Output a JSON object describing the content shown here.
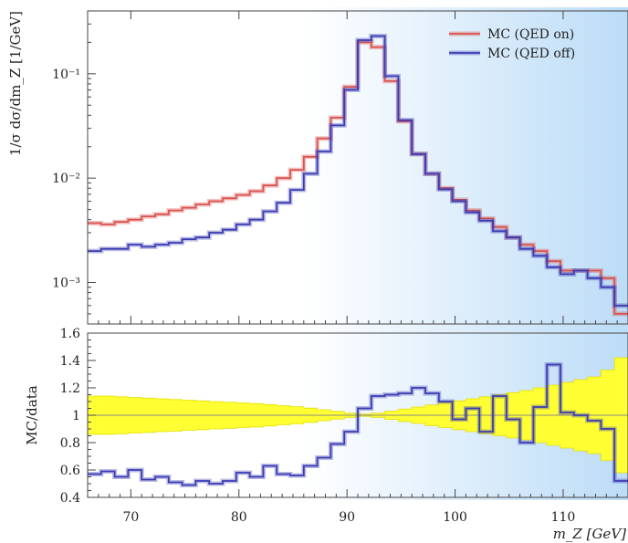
{
  "chart_data": [
    {
      "type": "line",
      "panel": "main",
      "xlabel": "m_Z [GeV]",
      "ylabel": "1/σ dσ/dm_Z [1/GeV]",
      "xlim": [
        66,
        116
      ],
      "ylim": [
        0.0004,
        0.4
      ],
      "yscale": "log",
      "x_ticks": [
        70,
        80,
        90,
        100,
        110
      ],
      "y_ticks": [
        {
          "value": 0.001,
          "label": "10⁻³"
        },
        {
          "value": 0.01,
          "label": "10⁻²"
        },
        {
          "value": 0.1,
          "label": "10⁻¹"
        }
      ],
      "bin_edges": [
        66,
        67.25,
        68.5,
        69.75,
        71,
        72.25,
        73.5,
        74.75,
        76,
        77.25,
        78.5,
        79.75,
        81,
        82.25,
        83.5,
        84.75,
        86,
        87.25,
        88.5,
        89.75,
        91,
        92.25,
        93.5,
        94.75,
        96,
        97.25,
        98.5,
        99.75,
        101,
        102.25,
        103.5,
        104.75,
        106,
        107.25,
        108.5,
        109.75,
        111,
        112.25,
        113.5,
        114.75,
        116
      ],
      "legend": {
        "position": "top-right"
      },
      "series": [
        {
          "name": "MC (QED on)",
          "color": "#d9534f",
          "values": [
            0.0037,
            0.0036,
            0.0038,
            0.004,
            0.0043,
            0.0045,
            0.0049,
            0.0052,
            0.0056,
            0.006,
            0.0064,
            0.0069,
            0.0075,
            0.0085,
            0.01,
            0.012,
            0.016,
            0.024,
            0.038,
            0.075,
            0.2,
            0.18,
            0.085,
            0.035,
            0.017,
            0.011,
            0.008,
            0.0062,
            0.0049,
            0.0041,
            0.0034,
            0.0027,
            0.0023,
            0.002,
            0.0016,
            0.0013,
            0.0013,
            0.0013,
            0.0011,
            0.0005
          ]
        },
        {
          "name": "MC (QED off)",
          "color": "#3b3bb3",
          "values": [
            0.002,
            0.0021,
            0.0021,
            0.0023,
            0.0022,
            0.0023,
            0.0024,
            0.0026,
            0.0027,
            0.003,
            0.0032,
            0.0036,
            0.004,
            0.0048,
            0.0058,
            0.0077,
            0.011,
            0.018,
            0.032,
            0.07,
            0.21,
            0.23,
            0.095,
            0.036,
            0.017,
            0.011,
            0.0078,
            0.006,
            0.0047,
            0.0039,
            0.0031,
            0.0027,
            0.0021,
            0.0018,
            0.0014,
            0.0012,
            0.0013,
            0.0011,
            0.0009,
            0.0006
          ]
        }
      ]
    },
    {
      "type": "line",
      "panel": "ratio",
      "xlabel": "m_Z [GeV]",
      "ylabel": "MC/data",
      "xlim": [
        66,
        116
      ],
      "ylim": [
        0.4,
        1.6
      ],
      "x_ticks": [
        70,
        80,
        90,
        100,
        110
      ],
      "y_ticks": [
        0.4,
        0.6,
        0.8,
        1,
        1.2,
        1.4,
        1.6
      ],
      "bin_edges": [
        66,
        67.25,
        68.5,
        69.75,
        71,
        72.25,
        73.5,
        74.75,
        76,
        77.25,
        78.5,
        79.75,
        81,
        82.25,
        83.5,
        84.75,
        86,
        87.25,
        88.5,
        89.75,
        91,
        92.25,
        93.5,
        94.75,
        96,
        97.25,
        98.5,
        99.75,
        101,
        102.25,
        103.5,
        104.75,
        106,
        107.25,
        108.5,
        109.75,
        111,
        112.25,
        113.5,
        114.75,
        116
      ],
      "reference_line": 1,
      "uncertainty_band": {
        "color": "#ffff33",
        "half_width": [
          0.14,
          0.14,
          0.135,
          0.13,
          0.125,
          0.12,
          0.115,
          0.11,
          0.105,
          0.1,
          0.095,
          0.09,
          0.085,
          0.078,
          0.07,
          0.062,
          0.052,
          0.04,
          0.028,
          0.015,
          0.008,
          0.015,
          0.03,
          0.045,
          0.06,
          0.075,
          0.09,
          0.105,
          0.12,
          0.135,
          0.15,
          0.165,
          0.18,
          0.2,
          0.22,
          0.24,
          0.26,
          0.28,
          0.33,
          0.42
        ]
      },
      "series": [
        {
          "name": "MC (QED off)",
          "color": "#3b3bb3",
          "values": [
            0.57,
            0.59,
            0.55,
            0.6,
            0.53,
            0.55,
            0.51,
            0.49,
            0.52,
            0.5,
            0.52,
            0.58,
            0.55,
            0.63,
            0.57,
            0.56,
            0.63,
            0.69,
            0.79,
            0.88,
            1.05,
            1.14,
            1.15,
            1.16,
            1.2,
            1.16,
            1.1,
            0.97,
            1.05,
            0.88,
            1.14,
            0.97,
            0.8,
            1.06,
            1.37,
            1.02,
            1.0,
            0.96,
            0.9,
            0.52
          ]
        }
      ]
    }
  ]
}
